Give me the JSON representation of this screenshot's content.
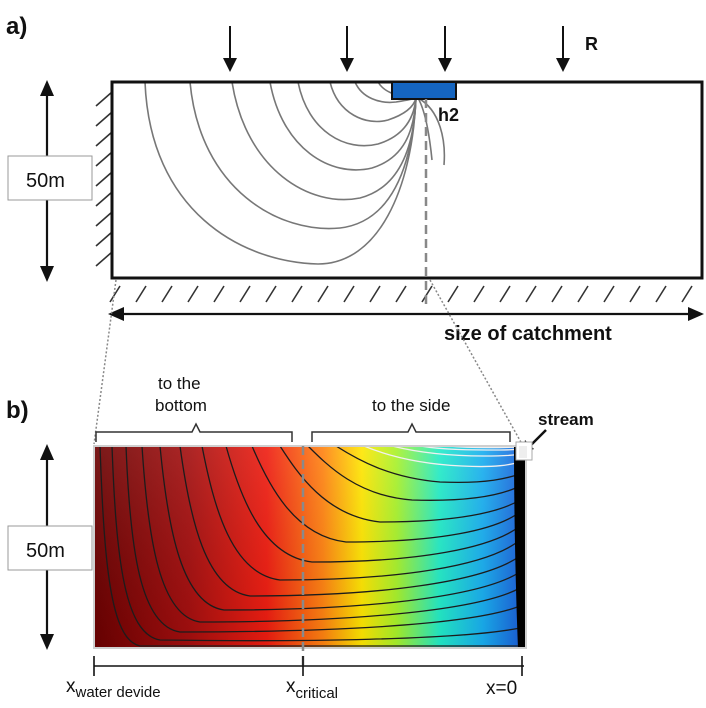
{
  "panel_a": {
    "label": "a)",
    "recharge_label": "R",
    "depth_label": "50m",
    "h2_label": "h2",
    "catchment_label": "size of catchment"
  },
  "panel_b": {
    "label": "b)",
    "bottom_bracket_label_line1": "to the",
    "bottom_bracket_label_line2": "bottom",
    "side_bracket_label": "to the side",
    "stream_label": "stream",
    "depth_label": "50m",
    "x_water_divide_main": "x",
    "x_water_divide_sub": "water devide",
    "x_critical_main": "x",
    "x_critical_sub": "critical",
    "x_zero_label": "x=0"
  },
  "colors": {
    "stream_fill": "#1565c0",
    "flowline_a": "#777777",
    "flowline_b_dark": "#222222",
    "flowline_b_light": "#e0e0e0"
  }
}
